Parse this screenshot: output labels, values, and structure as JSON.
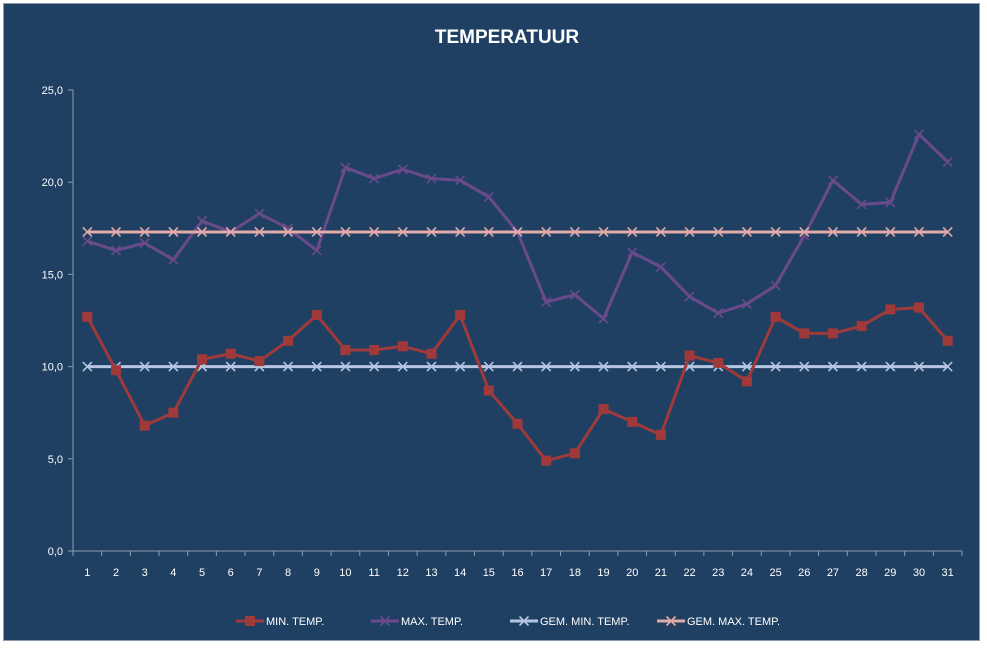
{
  "chart_data": {
    "type": "line",
    "title": "TEMPERATUUR",
    "xlabel": "",
    "ylabel": "",
    "x": [
      1,
      2,
      3,
      4,
      5,
      6,
      7,
      8,
      9,
      10,
      11,
      12,
      13,
      14,
      15,
      16,
      17,
      18,
      19,
      20,
      21,
      22,
      23,
      24,
      25,
      26,
      27,
      28,
      29,
      30,
      31
    ],
    "ylim": [
      0,
      25
    ],
    "yticks": [
      "0,0",
      "5,0",
      "10,0",
      "15,0",
      "20,0",
      "25,0"
    ],
    "ytick_values": [
      0,
      5,
      10,
      15,
      20,
      25
    ],
    "grid": false,
    "legend_position": "bottom",
    "series": [
      {
        "name": "MIN. TEMP.",
        "color": "#a03a3a",
        "marker": "square",
        "values": [
          12.7,
          9.8,
          6.8,
          7.5,
          10.4,
          10.7,
          10.3,
          11.4,
          12.8,
          10.9,
          10.9,
          11.1,
          10.7,
          12.8,
          8.7,
          6.9,
          4.9,
          5.3,
          7.7,
          7.0,
          6.3,
          10.6,
          10.2,
          9.2,
          12.7,
          11.8,
          11.8,
          12.2,
          13.1,
          13.2,
          11.4
        ]
      },
      {
        "name": "MAX. TEMP.",
        "color": "#6a4a8a",
        "marker": "x",
        "values": [
          16.8,
          16.3,
          16.7,
          15.8,
          17.9,
          17.3,
          18.3,
          17.5,
          16.3,
          20.8,
          20.2,
          20.7,
          20.2,
          20.1,
          19.2,
          17.3,
          13.5,
          13.9,
          12.6,
          16.2,
          15.4,
          13.8,
          12.9,
          13.4,
          14.4,
          17.1,
          20.1,
          18.8,
          18.9,
          22.6,
          21.1
        ]
      },
      {
        "name": "GEM. MIN. TEMP.",
        "color": "#b6c6e2",
        "marker": "x",
        "values": [
          10.0,
          10.0,
          10.0,
          10.0,
          10.0,
          10.0,
          10.0,
          10.0,
          10.0,
          10.0,
          10.0,
          10.0,
          10.0,
          10.0,
          10.0,
          10.0,
          10.0,
          10.0,
          10.0,
          10.0,
          10.0,
          10.0,
          10.0,
          10.0,
          10.0,
          10.0,
          10.0,
          10.0,
          10.0,
          10.0,
          10.0
        ]
      },
      {
        "name": "GEM. MAX. TEMP.",
        "color": "#e3aaaa",
        "marker": "x",
        "values": [
          17.3,
          17.3,
          17.3,
          17.3,
          17.3,
          17.3,
          17.3,
          17.3,
          17.3,
          17.3,
          17.3,
          17.3,
          17.3,
          17.3,
          17.3,
          17.3,
          17.3,
          17.3,
          17.3,
          17.3,
          17.3,
          17.3,
          17.3,
          17.3,
          17.3,
          17.3,
          17.3,
          17.3,
          17.3,
          17.3,
          17.3
        ]
      }
    ]
  },
  "colors": {
    "background": "#1f4063",
    "axis": "#8e9bab",
    "text": "#ffffff"
  }
}
